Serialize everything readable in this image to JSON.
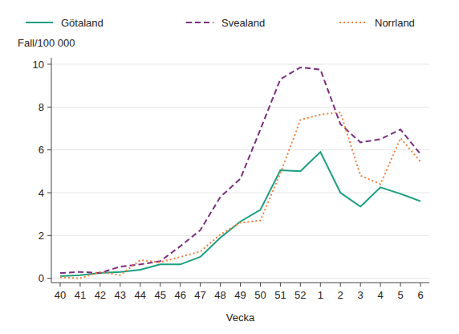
{
  "chart_data": {
    "type": "line",
    "y_label": "Fall/100 000",
    "x_label": "Vecka",
    "categories": [
      "40",
      "41",
      "42",
      "43",
      "44",
      "45",
      "46",
      "47",
      "48",
      "49",
      "50",
      "51",
      "52",
      "1",
      "2",
      "3",
      "4",
      "5",
      "6"
    ],
    "ylim": [
      -0.2,
      10.3
    ],
    "yticks": [
      0,
      2,
      4,
      6,
      8,
      10
    ],
    "grid": true,
    "legend": "top",
    "series": [
      {
        "name": "Götaland",
        "color": "#1a9f80",
        "line_style": "solid",
        "values": [
          0.1,
          0.15,
          0.25,
          0.3,
          0.4,
          0.65,
          0.65,
          1.0,
          1.9,
          2.65,
          3.2,
          5.05,
          5.0,
          5.9,
          4.0,
          3.35,
          4.25,
          3.95,
          3.6
        ]
      },
      {
        "name": "Svealand",
        "color": "#7b2d7f",
        "line_style": "dashed",
        "values": [
          0.25,
          0.3,
          0.25,
          0.55,
          0.65,
          0.8,
          1.5,
          2.25,
          3.8,
          4.65,
          6.95,
          9.3,
          9.85,
          9.75,
          7.2,
          6.35,
          6.5,
          6.95,
          5.8
        ]
      },
      {
        "name": "Norrland",
        "color": "#f07f3c",
        "line_style": "dotted",
        "values": [
          0.05,
          0.0,
          0.3,
          0.15,
          0.85,
          0.75,
          1.0,
          1.25,
          2.05,
          2.6,
          2.7,
          4.9,
          7.4,
          7.65,
          7.75,
          4.8,
          4.4,
          6.55,
          5.45
        ]
      }
    ]
  }
}
